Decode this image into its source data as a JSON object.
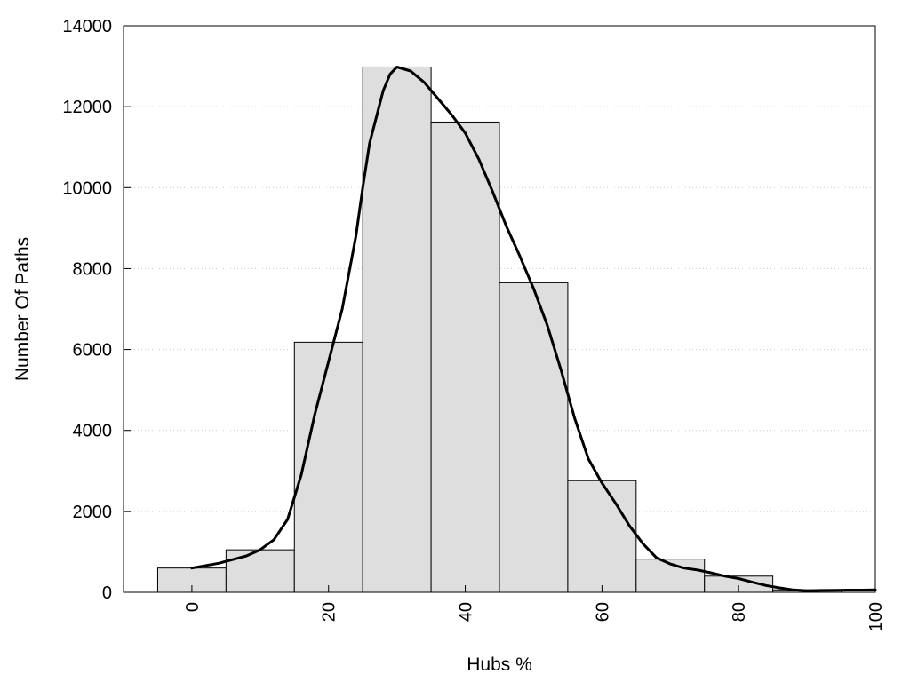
{
  "chart_data": {
    "type": "bar",
    "title": "",
    "xlabel": "Hubs %",
    "ylabel": "Number Of Paths",
    "xlim": [
      -10,
      100
    ],
    "ylim": [
      0,
      14000
    ],
    "x_ticks": [
      0,
      20,
      40,
      60,
      80,
      100
    ],
    "y_ticks": [
      0,
      2000,
      4000,
      6000,
      8000,
      10000,
      12000,
      14000
    ],
    "grid": "horizontal-dotted",
    "bin_width": 10,
    "bins": [
      {
        "center": 0,
        "value": 600
      },
      {
        "center": 10,
        "value": 1050
      },
      {
        "center": 20,
        "value": 6180
      },
      {
        "center": 30,
        "value": 12980
      },
      {
        "center": 40,
        "value": 11620
      },
      {
        "center": 50,
        "value": 7650
      },
      {
        "center": 60,
        "value": 2760
      },
      {
        "center": 70,
        "value": 820
      },
      {
        "center": 80,
        "value": 400
      },
      {
        "center": 90,
        "value": 60
      }
    ],
    "smooth_curve": {
      "x": [
        0,
        4,
        8,
        10,
        12,
        14,
        16,
        18,
        20,
        22,
        24,
        25,
        26,
        28,
        29,
        30,
        32,
        34,
        36,
        38,
        40,
        42,
        44,
        46,
        48,
        50,
        52,
        54,
        56,
        58,
        60,
        62,
        64,
        66,
        68,
        70,
        72,
        74,
        76,
        78,
        80,
        82,
        84,
        86,
        88,
        90,
        92,
        94,
        96,
        98,
        100
      ],
      "y": [
        600,
        720,
        900,
        1050,
        1300,
        1800,
        2900,
        4400,
        5700,
        7000,
        8800,
        10000,
        11100,
        12400,
        12800,
        12980,
        12880,
        12600,
        12200,
        11800,
        11350,
        10700,
        9900,
        9050,
        8300,
        7500,
        6600,
        5500,
        4300,
        3300,
        2700,
        2200,
        1650,
        1200,
        850,
        700,
        600,
        550,
        480,
        400,
        340,
        250,
        170,
        110,
        60,
        40,
        45,
        50,
        55,
        55,
        60
      ]
    },
    "colors": {
      "bar_fill": "#dedede",
      "bar_stroke": "#000000",
      "curve": "#000000",
      "grid": "#c8c8c8"
    }
  }
}
